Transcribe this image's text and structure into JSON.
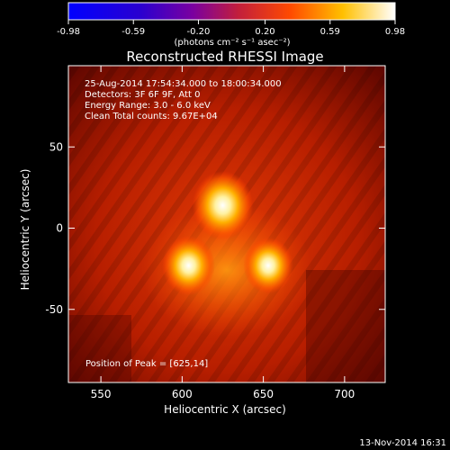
{
  "chart_data": {
    "type": "heatmap",
    "title": "Reconstructed RHESSI Image",
    "xlabel": "Heliocentric X (arcsec)",
    "ylabel": "Heliocentric Y (arcsec)",
    "xlim": [
      530,
      725
    ],
    "ylim": [
      -95,
      100
    ],
    "x_ticks": [
      550,
      600,
      650,
      700
    ],
    "y_ticks": [
      50,
      0,
      -50
    ],
    "colorbar": {
      "min": -0.98,
      "max": 0.98,
      "ticks": [
        "-0.98",
        "-0.59",
        "-0.20",
        "0.20",
        "0.59",
        "0.98"
      ],
      "units": "(photons cm⁻² s⁻¹ asec⁻²)"
    },
    "info_lines": [
      "25-Aug-2014 17:54:34.000 to 18:00:34.000",
      "Detectors: 3F 6F 9F, Att 0",
      "Energy Range: 3.0 - 6.0 keV",
      "Clean    Total counts: 9.67E+04"
    ],
    "peak_label": "Position of Peak = [625,14]",
    "sources": [
      {
        "x": 625,
        "y": 14,
        "intensity": 0.98
      },
      {
        "x": 604,
        "y": -23,
        "intensity": 0.85
      },
      {
        "x": 653,
        "y": -23,
        "intensity": 0.8
      }
    ],
    "timestamp": "13-Nov-2014 16:31"
  }
}
